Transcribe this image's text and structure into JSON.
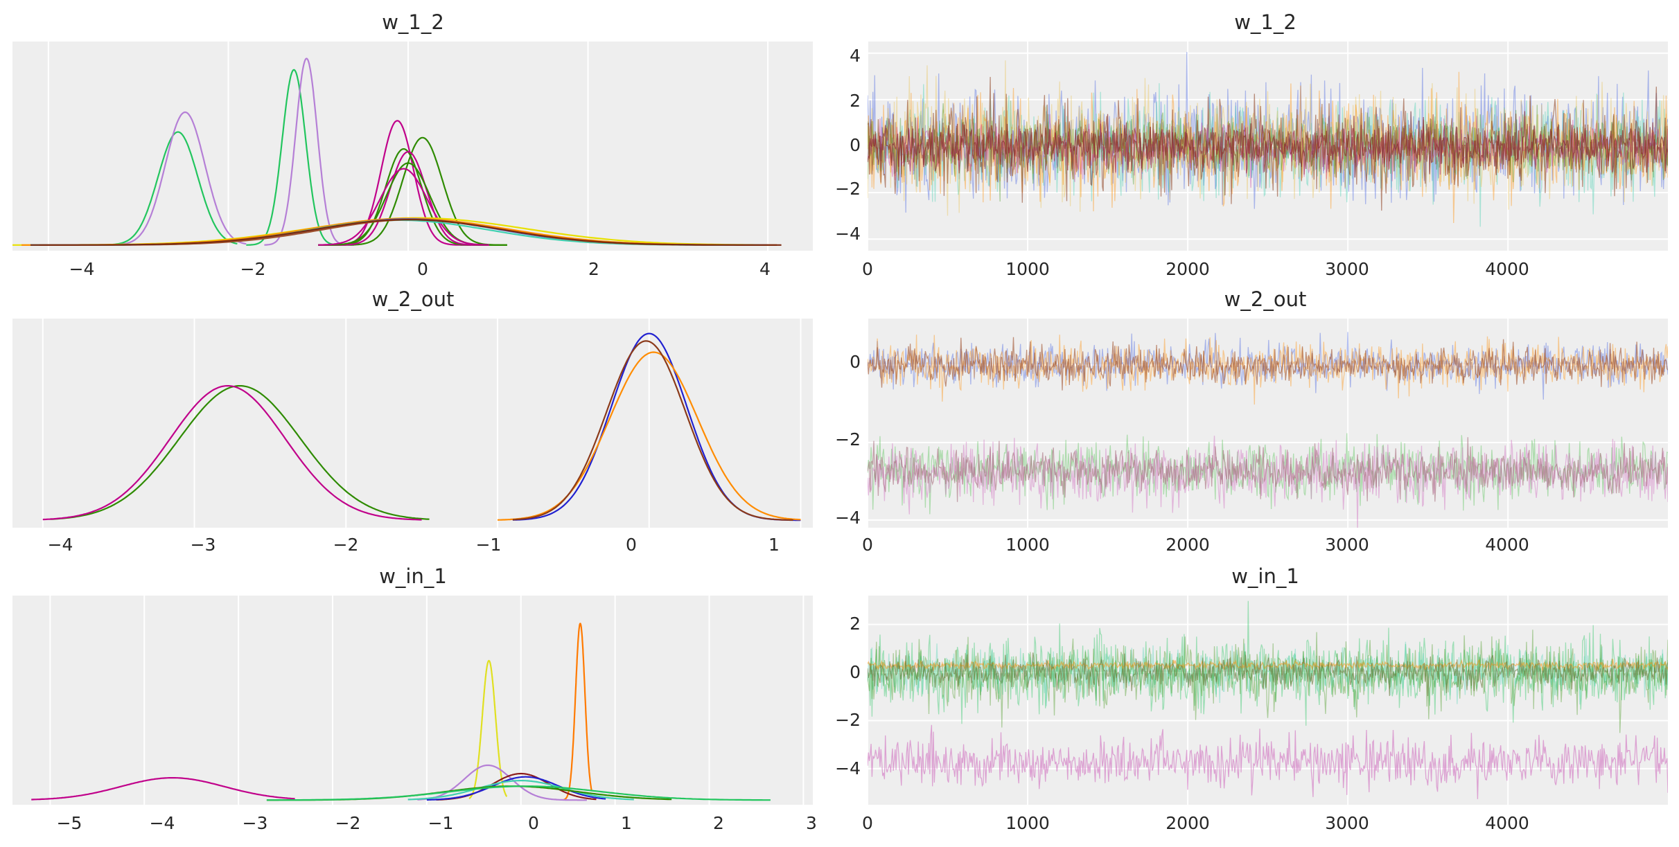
{
  "figure": {
    "kind": "ArviZ trace plot (KDE + chain traces)"
  },
  "chart_data": [
    {
      "type": "line",
      "panel": "w_1_2-density",
      "title": "w_1_2",
      "xlabel": "",
      "ylabel": "",
      "grid": "x-only",
      "xlim": [
        -4.4,
        4.5
      ],
      "ylim": [
        -0.1,
        3.6
      ],
      "xticks": [
        -4,
        -2,
        0,
        2,
        4
      ],
      "xtick_labels": [
        "−4",
        "−2",
        "0",
        "2",
        "4"
      ],
      "series": [
        {
          "name": "kde-narrow-1",
          "color": "#22c55e",
          "mu": -2.56,
          "sigma": 0.22,
          "peak": 2.0,
          "xrange": [
            -3.4,
            -1.9
          ]
        },
        {
          "name": "kde-narrow-2",
          "color": "#b57fd6",
          "mu": -2.48,
          "sigma": 0.22,
          "peak": 2.35,
          "xrange": [
            -3.3,
            -1.8
          ]
        },
        {
          "name": "kde-narrow-3",
          "color": "#22c55e",
          "mu": -1.27,
          "sigma": 0.13,
          "peak": 3.1,
          "xrange": [
            -1.8,
            -0.75
          ]
        },
        {
          "name": "kde-narrow-4",
          "color": "#b57fd6",
          "mu": -1.13,
          "sigma": 0.12,
          "peak": 3.3,
          "xrange": [
            -1.6,
            -0.6
          ]
        },
        {
          "name": "kde-mid-1",
          "color": "#c0008a",
          "mu": -0.12,
          "sigma": 0.18,
          "peak": 2.2,
          "xrange": [
            -1.0,
            0.7
          ]
        },
        {
          "name": "kde-mid-2",
          "color": "#2e8b00",
          "mu": 0.16,
          "sigma": 0.22,
          "peak": 1.9,
          "xrange": [
            -1.0,
            1.1
          ]
        },
        {
          "name": "kde-mid-3",
          "color": "#2e8b00",
          "mu": -0.05,
          "sigma": 0.2,
          "peak": 1.7,
          "xrange": [
            -1.0,
            1.1
          ]
        },
        {
          "name": "kde-mid-4",
          "color": "#c0008a",
          "mu": 0.0,
          "sigma": 0.2,
          "peak": 1.65,
          "xrange": [
            -1.0,
            0.9
          ]
        },
        {
          "name": "kde-mid-5",
          "color": "#2e8b00",
          "mu": 0.0,
          "sigma": 0.24,
          "peak": 1.45,
          "xrange": [
            -1.0,
            1.1
          ]
        },
        {
          "name": "kde-mid-6",
          "color": "#c0008a",
          "mu": -0.05,
          "sigma": 0.26,
          "peak": 1.35,
          "xrange": [
            -1.0,
            0.9
          ]
        },
        {
          "name": "kde-wide-1",
          "color": "#e8e000",
          "mu": 0.1,
          "sigma": 1.2,
          "peak": 0.48,
          "xrange": [
            -4.4,
            3.9
          ]
        },
        {
          "name": "kde-wide-2",
          "color": "#ff8c00",
          "mu": 0.0,
          "sigma": 1.1,
          "peak": 0.47,
          "xrange": [
            -4.3,
            4.1
          ]
        },
        {
          "name": "kde-wide-3",
          "color": "#4060e0",
          "mu": 0.0,
          "sigma": 1.0,
          "peak": 0.46,
          "xrange": [
            -4.2,
            4.0
          ]
        },
        {
          "name": "kde-wide-4",
          "color": "#40d0b0",
          "mu": -0.1,
          "sigma": 1.0,
          "peak": 0.44,
          "xrange": [
            -4.2,
            3.9
          ]
        },
        {
          "name": "kde-wide-5",
          "color": "#a0522d",
          "mu": 0.05,
          "sigma": 1.0,
          "peak": 0.45,
          "xrange": [
            -4.1,
            4.1
          ]
        },
        {
          "name": "kde-wide-6",
          "color": "#7a2a10",
          "mu": 0.0,
          "sigma": 1.05,
          "peak": 0.45,
          "xrange": [
            -4.2,
            4.15
          ]
        }
      ]
    },
    {
      "type": "line",
      "panel": "w_1_2-trace",
      "title": "w_1_2",
      "xlabel": "",
      "ylabel": "",
      "grid": "both",
      "xlim": [
        0,
        4999
      ],
      "ylim": [
        -4.5,
        4.5
      ],
      "xticks": [
        0,
        1000,
        2000,
        3000,
        4000
      ],
      "xtick_labels": [
        "0",
        "1000",
        "2000",
        "3000",
        "4000"
      ],
      "yticks": [
        -4,
        -2,
        0,
        2,
        4
      ],
      "ytick_labels": [
        "−4",
        "−2",
        "0",
        "2",
        "4"
      ],
      "series": [
        {
          "name": "trace-blue",
          "color": "#4060e0",
          "center": 0,
          "spread": 1.15,
          "alpha": 0.4
        },
        {
          "name": "trace-teal",
          "color": "#40d0b0",
          "center": -0.1,
          "spread": 1.05,
          "alpha": 0.4
        },
        {
          "name": "trace-yellow",
          "color": "#e8c050",
          "center": 0.1,
          "spread": 1.1,
          "alpha": 0.4
        },
        {
          "name": "trace-orange",
          "color": "#ff8c00",
          "center": 0,
          "spread": 1.0,
          "alpha": 0.4
        },
        {
          "name": "trace-green",
          "color": "#2e8b00",
          "center": 0,
          "spread": 0.6,
          "alpha": 0.35
        },
        {
          "name": "trace-brown",
          "color": "#8b3a1a",
          "center": 0,
          "spread": 0.85,
          "alpha": 0.55
        },
        {
          "name": "trace-magenta",
          "color": "#c0008a",
          "center": -0.1,
          "spread": 0.5,
          "alpha": 0.3
        },
        {
          "name": "trace-darkred",
          "color": "#8b3030",
          "center": 0,
          "spread": 0.45,
          "alpha": 0.7
        }
      ]
    },
    {
      "type": "line",
      "panel": "w_2_out-density",
      "title": "w_2_out",
      "xlabel": "",
      "ylabel": "",
      "grid": "x-only",
      "xlim": [
        -4.2,
        1.08
      ],
      "ylim": [
        -0.1,
        2.7
      ],
      "xticks": [
        -4,
        -3,
        -2,
        -1,
        0,
        1
      ],
      "xtick_labels": [
        "−4",
        "−3",
        "−2",
        "−1",
        "0",
        "1"
      ],
      "series": [
        {
          "name": "kde-1",
          "color": "#2e8b00",
          "mu": -2.7,
          "sigma": 0.4,
          "peak": 1.8,
          "xrange": [
            -3.95,
            -1.45
          ]
        },
        {
          "name": "kde-2",
          "color": "#c0008a",
          "mu": -2.78,
          "sigma": 0.38,
          "peak": 1.8,
          "xrange": [
            -4.0,
            -1.5
          ]
        },
        {
          "name": "kde-3",
          "color": "#2020d0",
          "mu": 0.0,
          "sigma": 0.25,
          "peak": 2.5,
          "xrange": [
            -0.9,
            1.0
          ]
        },
        {
          "name": "kde-4",
          "color": "#ff8c00",
          "mu": 0.03,
          "sigma": 0.29,
          "peak": 2.25,
          "xrange": [
            -1.0,
            1.0
          ]
        },
        {
          "name": "kde-5",
          "color": "#8b3a1a",
          "mu": -0.02,
          "sigma": 0.26,
          "peak": 2.4,
          "xrange": [
            -0.9,
            0.95
          ]
        }
      ]
    },
    {
      "type": "line",
      "panel": "w_2_out-trace",
      "title": "w_2_out",
      "xlabel": "",
      "ylabel": "",
      "grid": "both",
      "xlim": [
        0,
        4999
      ],
      "ylim": [
        -4.2,
        1.2
      ],
      "xticks": [
        0,
        1000,
        2000,
        3000,
        4000
      ],
      "xtick_labels": [
        "0",
        "1000",
        "2000",
        "3000",
        "4000"
      ],
      "yticks": [
        -4,
        -2,
        0
      ],
      "ytick_labels": [
        "−4",
        "−2",
        "0"
      ],
      "series": [
        {
          "name": "trace-blue",
          "color": "#4060e0",
          "center": 0,
          "spread": 0.25,
          "alpha": 0.4
        },
        {
          "name": "trace-orange",
          "color": "#ff8c00",
          "center": 0,
          "spread": 0.29,
          "alpha": 0.4
        },
        {
          "name": "trace-brown",
          "color": "#a0522d",
          "center": 0,
          "spread": 0.22,
          "alpha": 0.6
        },
        {
          "name": "trace-green",
          "color": "#50c050",
          "center": -2.7,
          "spread": 0.38,
          "alpha": 0.4
        },
        {
          "name": "trace-pink",
          "color": "#d070c0",
          "center": -2.78,
          "spread": 0.38,
          "alpha": 0.45
        },
        {
          "name": "trace-mauve",
          "color": "#a86f7f",
          "center": -2.74,
          "spread": 0.28,
          "alpha": 0.6
        }
      ]
    },
    {
      "type": "line",
      "panel": "w_in_1-density",
      "title": "w_in_1",
      "xlabel": "",
      "ylabel": "",
      "grid": "x-only",
      "xlim": [
        -5.4,
        3.1
      ],
      "ylim": [
        -0.1,
        4.4
      ],
      "xticks": [
        -5,
        -4,
        -3,
        -2,
        -1,
        0,
        1,
        2,
        3
      ],
      "xtick_labels": [
        "−5",
        "−4",
        "−3",
        "−2",
        "−1",
        "0",
        "1",
        "2",
        "3"
      ],
      "series": [
        {
          "name": "kde-1",
          "color": "#c0008a",
          "mu": -3.7,
          "sigma": 0.55,
          "peak": 0.48,
          "xrange": [
            -5.2,
            -2.4
          ]
        },
        {
          "name": "kde-2",
          "color": "#e0e020",
          "mu": -0.34,
          "sigma": 0.07,
          "peak": 3.0,
          "xrange": [
            -0.55,
            -0.15
          ]
        },
        {
          "name": "kde-3",
          "color": "#ff7a00",
          "mu": 0.63,
          "sigma": 0.05,
          "peak": 3.8,
          "xrange": [
            0.45,
            0.75
          ]
        },
        {
          "name": "kde-4",
          "color": "#b57fd6",
          "mu": -0.35,
          "sigma": 0.25,
          "peak": 0.75,
          "xrange": [
            -1.1,
            0.7
          ]
        },
        {
          "name": "kde-5",
          "color": "#8b1a1a",
          "mu": 0.0,
          "sigma": 0.3,
          "peak": 0.57,
          "xrange": [
            -0.9,
            0.8
          ]
        },
        {
          "name": "kde-6",
          "color": "#2020d0",
          "mu": 0.05,
          "sigma": 0.35,
          "peak": 0.5,
          "xrange": [
            -1.0,
            0.9
          ]
        },
        {
          "name": "kde-7",
          "color": "#40d0b0",
          "mu": 0.0,
          "sigma": 0.45,
          "peak": 0.42,
          "xrange": [
            -1.2,
            1.2
          ]
        },
        {
          "name": "kde-8",
          "color": "#2e8b00",
          "mu": -0.1,
          "sigma": 0.7,
          "peak": 0.3,
          "xrange": [
            -2.7,
            1.6
          ]
        },
        {
          "name": "kde-9",
          "color": "#22c55e",
          "mu": 0.05,
          "sigma": 0.8,
          "peak": 0.3,
          "xrange": [
            -2.7,
            2.65
          ]
        }
      ]
    },
    {
      "type": "line",
      "panel": "w_in_1-trace",
      "title": "w_in_1",
      "xlabel": "",
      "ylabel": "",
      "grid": "both",
      "xlim": [
        0,
        4999
      ],
      "ylim": [
        -5.5,
        3.2
      ],
      "xticks": [
        0,
        1000,
        2000,
        3000,
        4000
      ],
      "xtick_labels": [
        "0",
        "1000",
        "2000",
        "3000",
        "4000"
      ],
      "yticks": [
        -4,
        -2,
        0,
        2
      ],
      "ytick_labels": [
        "−4",
        "−2",
        "0",
        "2"
      ],
      "series": [
        {
          "name": "trace-green",
          "color": "#22c55e",
          "center": 0,
          "spread": 0.75,
          "alpha": 0.4
        },
        {
          "name": "trace-teal",
          "color": "#40d0b0",
          "center": 0.05,
          "spread": 0.45,
          "alpha": 0.35
        },
        {
          "name": "trace-darkgreen",
          "color": "#2e8b00",
          "center": -0.1,
          "spread": 0.65,
          "alpha": 0.35
        },
        {
          "name": "trace-orange",
          "color": "#ff8c00",
          "center": 0.3,
          "spread": 0.08,
          "alpha": 0.5
        },
        {
          "name": "trace-olive",
          "color": "#6b7a3a",
          "center": 0,
          "spread": 0.3,
          "alpha": 0.6
        },
        {
          "name": "trace-pink",
          "color": "#d070c0",
          "center": -3.7,
          "spread": 0.5,
          "alpha": 0.6
        }
      ]
    }
  ]
}
